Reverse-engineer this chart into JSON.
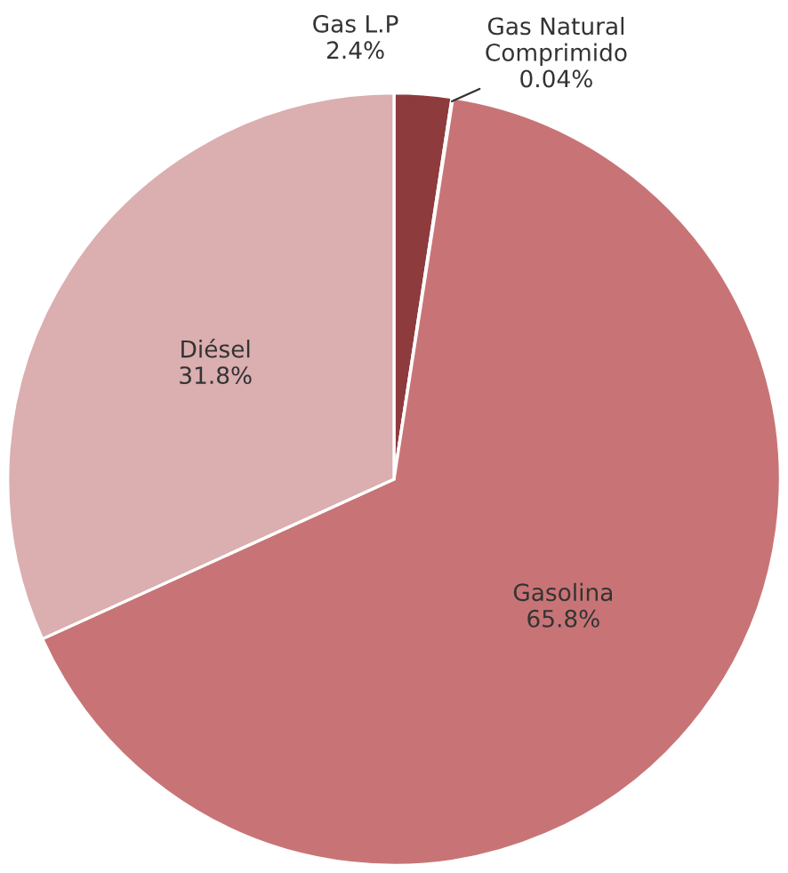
{
  "chart_data": {
    "type": "pie",
    "categories": [
      "Gas L.P",
      "Gas Natural\nComprimido",
      "Gasolina",
      "Diésel"
    ],
    "values": [
      2.4,
      0.04,
      65.8,
      31.8
    ],
    "colors": [
      "#8e3b3e",
      "#c9c9c9",
      "#c87476",
      "#dbaeb0"
    ],
    "value_labels": [
      "2.4%",
      "0.04%",
      "65.8%",
      "31.8%"
    ],
    "legend": false
  }
}
